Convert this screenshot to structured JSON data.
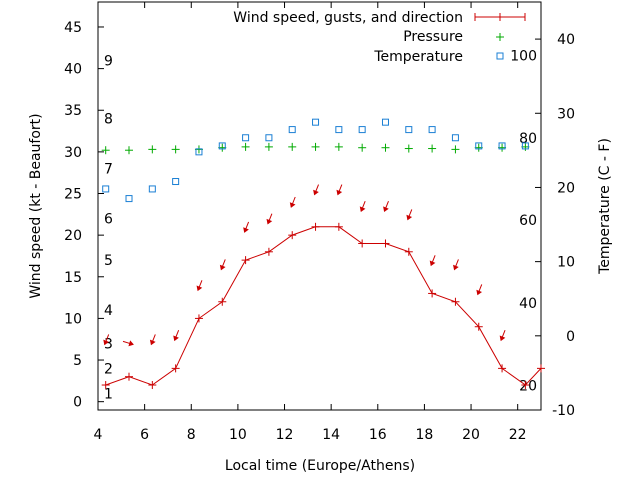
{
  "chart_data": {
    "type": "line",
    "xlabel": "Local time (Europe/Athens)",
    "ylabel_left": "Wind speed (kt - Beaufort)",
    "ylabel_right": "Temperature (C - F)",
    "xlim": [
      4,
      23
    ],
    "ylim_left": [
      -1,
      48
    ],
    "ylim_right": [
      -10,
      45
    ],
    "x_ticks": [
      4,
      6,
      8,
      10,
      12,
      14,
      16,
      18,
      20,
      22
    ],
    "y_ticks_left": [
      0,
      5,
      10,
      15,
      20,
      25,
      30,
      35,
      40,
      45
    ],
    "y_ticks_right": [
      -10,
      0,
      10,
      20,
      30,
      40
    ],
    "beaufort_labels": [
      {
        "text": "1",
        "kt": 1
      },
      {
        "text": "2",
        "kt": 4
      },
      {
        "text": "3",
        "kt": 7
      },
      {
        "text": "4",
        "kt": 11
      },
      {
        "text": "5",
        "kt": 17
      },
      {
        "text": "6",
        "kt": 22
      },
      {
        "text": "7",
        "kt": 28
      },
      {
        "text": "8",
        "kt": 34
      },
      {
        "text": "9",
        "kt": 41
      }
    ],
    "fahrenheit_labels": [
      {
        "text": "20",
        "c": -6.7
      },
      {
        "text": "40",
        "c": 4.4
      },
      {
        "text": "60",
        "c": 15.6
      },
      {
        "text": "80",
        "c": 26.7
      },
      {
        "text": "100",
        "c": 37.8
      }
    ],
    "legend_position": "top-right",
    "colors": {
      "wind": "#cc0000",
      "pressure": "#00aa00",
      "temperature": "#1a7fd4"
    },
    "series": [
      {
        "name": "Wind speed, gusts, and direction",
        "marker": "+ with line",
        "x": [
          4.33,
          5.33,
          6.33,
          7.33,
          8.33,
          9.33,
          10.33,
          11.33,
          12.33,
          13.33,
          14.33,
          15.33,
          16.33,
          17.33,
          18.33,
          19.33,
          20.33,
          21.33,
          22.33,
          23
        ],
        "y": [
          2,
          3,
          2,
          4,
          10,
          12,
          17,
          18,
          20,
          21,
          21,
          19,
          19,
          18,
          13,
          12,
          9,
          4,
          2,
          4
        ],
        "direction_arrows_y": [
          7,
          7,
          7,
          7.5,
          13.5,
          16,
          20.5,
          21.5,
          23.5,
          25,
          25,
          23,
          23,
          22,
          16.5,
          16,
          13,
          7.5
        ]
      },
      {
        "name": "Pressure",
        "marker": "+",
        "x": [
          4.33,
          5.33,
          6.33,
          7.33,
          8.33,
          9.33,
          10.33,
          11.33,
          12.33,
          13.33,
          14.33,
          15.33,
          16.33,
          17.33,
          18.33,
          19.33,
          20.33,
          21.33,
          22.33
        ],
        "y": [
          30.2,
          30.2,
          30.3,
          30.3,
          30.3,
          30.5,
          30.6,
          30.6,
          30.6,
          30.6,
          30.6,
          30.5,
          30.5,
          30.4,
          30.4,
          30.3,
          30.5,
          30.5,
          30.6
        ]
      },
      {
        "name": "Temperature",
        "marker": "square",
        "x": [
          4.33,
          5.33,
          6.33,
          7.33,
          8.33,
          9.33,
          10.33,
          11.33,
          12.33,
          13.33,
          14.33,
          15.33,
          16.33,
          17.33,
          18.33,
          19.33,
          20.33,
          21.33,
          22.33
        ],
        "y": [
          19.8,
          18.5,
          19.8,
          20.8,
          24.8,
          25.6,
          26.7,
          26.7,
          27.8,
          28.8,
          27.8,
          27.8,
          28.8,
          27.8,
          27.8,
          26.7,
          25.6,
          25.6,
          25.6
        ]
      }
    ]
  }
}
